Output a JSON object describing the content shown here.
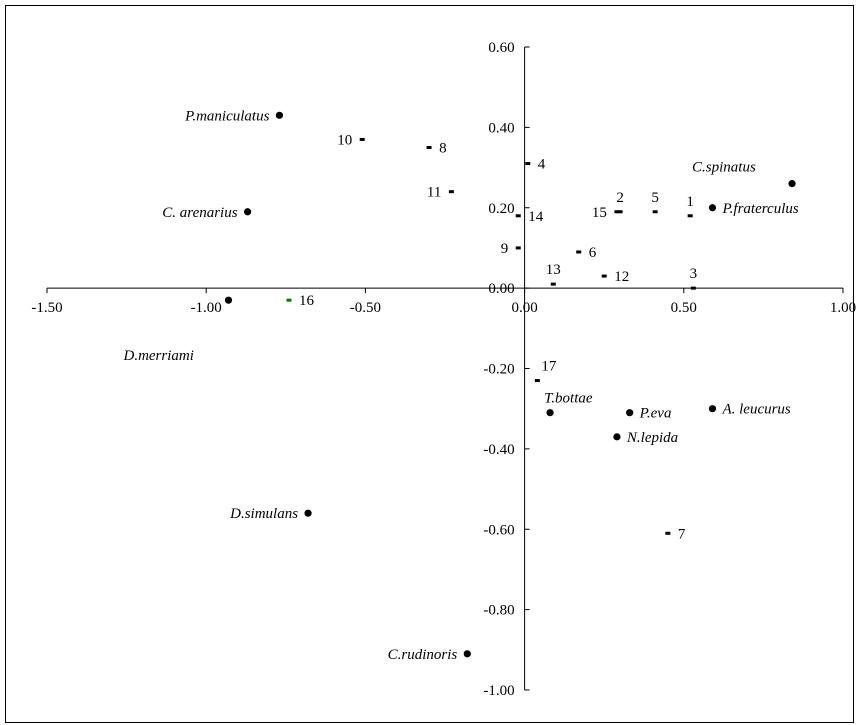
{
  "chart_data": {
    "type": "scatter",
    "title": "",
    "xlabel": "",
    "ylabel": "",
    "xlim": [
      -1.5,
      1.0
    ],
    "ylim": [
      -1.0,
      0.6
    ],
    "x_ticks": [
      -1.5,
      -1.0,
      -0.5,
      0.0,
      0.5,
      1.0
    ],
    "y_ticks": [
      -1.0,
      -0.8,
      -0.6,
      -0.4,
      -0.2,
      0.0,
      0.2,
      0.4,
      0.6
    ],
    "x_tick_labels": [
      "-1.50",
      "-1.00",
      "-0.50",
      "0.00",
      "0.50",
      "1.00"
    ],
    "y_tick_labels": [
      "-1.00",
      "-0.80",
      "-0.60",
      "-0.40",
      "-0.20",
      "0.00",
      "0.20",
      "0.40",
      "0.60"
    ],
    "grid": false,
    "legend": "none",
    "series": [
      {
        "marker": "circle",
        "color": "#000000",
        "points": [
          {
            "label": "P.maniculatus",
            "x": -0.77,
            "y": 0.43,
            "label_side": "left"
          },
          {
            "label": "C. arenarius",
            "x": -0.87,
            "y": 0.19,
            "label_side": "left"
          },
          {
            "label": "D.merriami",
            "x": -0.93,
            "y": -0.03,
            "label_side": "below"
          },
          {
            "label": "C.spinatus",
            "x": 0.84,
            "y": 0.26,
            "label_side": "above-left"
          },
          {
            "label": "P.fraterculus",
            "x": 0.59,
            "y": 0.2,
            "label_side": "right"
          },
          {
            "label": "T.bottae",
            "x": 0.08,
            "y": -0.31,
            "label_side": "above"
          },
          {
            "label": "P.eva",
            "x": 0.33,
            "y": -0.31,
            "label_side": "right"
          },
          {
            "label": "A. leucurus",
            "x": 0.59,
            "y": -0.3,
            "label_side": "right"
          },
          {
            "label": "N.lepida",
            "x": 0.29,
            "y": -0.37,
            "label_side": "right"
          },
          {
            "label": "D.simulans",
            "x": -0.68,
            "y": -0.56,
            "label_side": "left"
          },
          {
            "label": "C.rudinoris",
            "x": -0.18,
            "y": -0.91,
            "label_side": "left"
          }
        ]
      },
      {
        "marker": "dash",
        "color": "#000000",
        "points": [
          {
            "label": "1",
            "x": 0.52,
            "y": 0.18,
            "label_side": "above"
          },
          {
            "label": "2",
            "x": 0.3,
            "y": 0.19,
            "label_side": "above"
          },
          {
            "label": "3",
            "x": 0.53,
            "y": 0.0,
            "label_side": "above"
          },
          {
            "label": "4",
            "x": 0.01,
            "y": 0.31,
            "label_side": "right"
          },
          {
            "label": "5",
            "x": 0.41,
            "y": 0.19,
            "label_side": "above"
          },
          {
            "label": "6",
            "x": 0.17,
            "y": 0.09,
            "label_side": "right"
          },
          {
            "label": "7",
            "x": 0.45,
            "y": -0.61,
            "label_side": "right"
          },
          {
            "label": "8",
            "x": -0.3,
            "y": 0.35,
            "label_side": "right"
          },
          {
            "label": "9",
            "x": -0.02,
            "y": 0.1,
            "label_side": "left"
          },
          {
            "label": "10",
            "x": -0.51,
            "y": 0.37,
            "label_side": "left"
          },
          {
            "label": "11",
            "x": -0.23,
            "y": 0.24,
            "label_side": "left"
          },
          {
            "label": "12",
            "x": 0.25,
            "y": 0.03,
            "label_side": "right"
          },
          {
            "label": "13",
            "x": 0.09,
            "y": 0.01,
            "label_side": "above"
          },
          {
            "label": "14",
            "x": -0.02,
            "y": 0.18,
            "label_side": "right"
          },
          {
            "label": "15",
            "x": 0.29,
            "y": 0.19,
            "label_side": "left"
          },
          {
            "label": "16",
            "x": -0.74,
            "y": -0.03,
            "label_side": "right",
            "color": "#1a6b1a"
          },
          {
            "label": "17",
            "x": 0.04,
            "y": -0.23,
            "label_side": "above-right"
          }
        ]
      }
    ]
  }
}
